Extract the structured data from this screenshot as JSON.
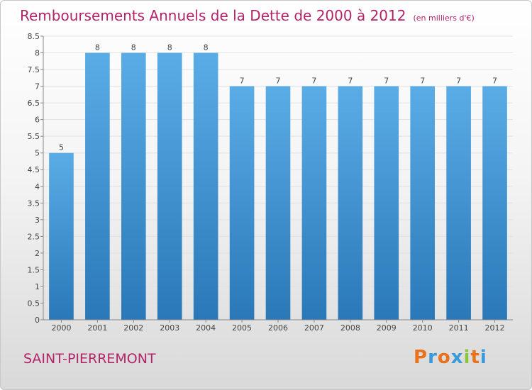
{
  "header": {
    "title": "Remboursements Annuels de la Dette de 2000 à 2012",
    "unit": "(en milliers d'€)"
  },
  "footer": {
    "commune": "SAINT-PIERREMONT",
    "logo_text": "Proxiti",
    "logo_colors": [
      "#e8731c",
      "#3a9ad9",
      "#e8731c",
      "#3a9ad9",
      "#8cc63f",
      "#e8731c",
      "#3a9ad9"
    ]
  },
  "chart_data": {
    "type": "bar",
    "categories": [
      "2000",
      "2001",
      "2002",
      "2003",
      "2004",
      "2005",
      "2006",
      "2007",
      "2008",
      "2009",
      "2010",
      "2011",
      "2012"
    ],
    "values": [
      5,
      8,
      8,
      8,
      8,
      7,
      7,
      7,
      7,
      7,
      7,
      7,
      7
    ],
    "data_labels": [
      "5",
      "8",
      "8",
      "8",
      "8",
      "7",
      "7",
      "7",
      "7",
      "7",
      "7",
      "7",
      "7"
    ],
    "yticks": [
      "0",
      "0.5",
      "1",
      "1.5",
      "2",
      "2.5",
      "3",
      "3.5",
      "4",
      "4.5",
      "5",
      "5.5",
      "6",
      "6.5",
      "7",
      "7.5",
      "8",
      "8.5"
    ],
    "ylim": [
      0,
      8.5
    ],
    "grid": true,
    "bar_color_top": "#5aace6",
    "bar_color_bottom": "#2a78b8"
  }
}
